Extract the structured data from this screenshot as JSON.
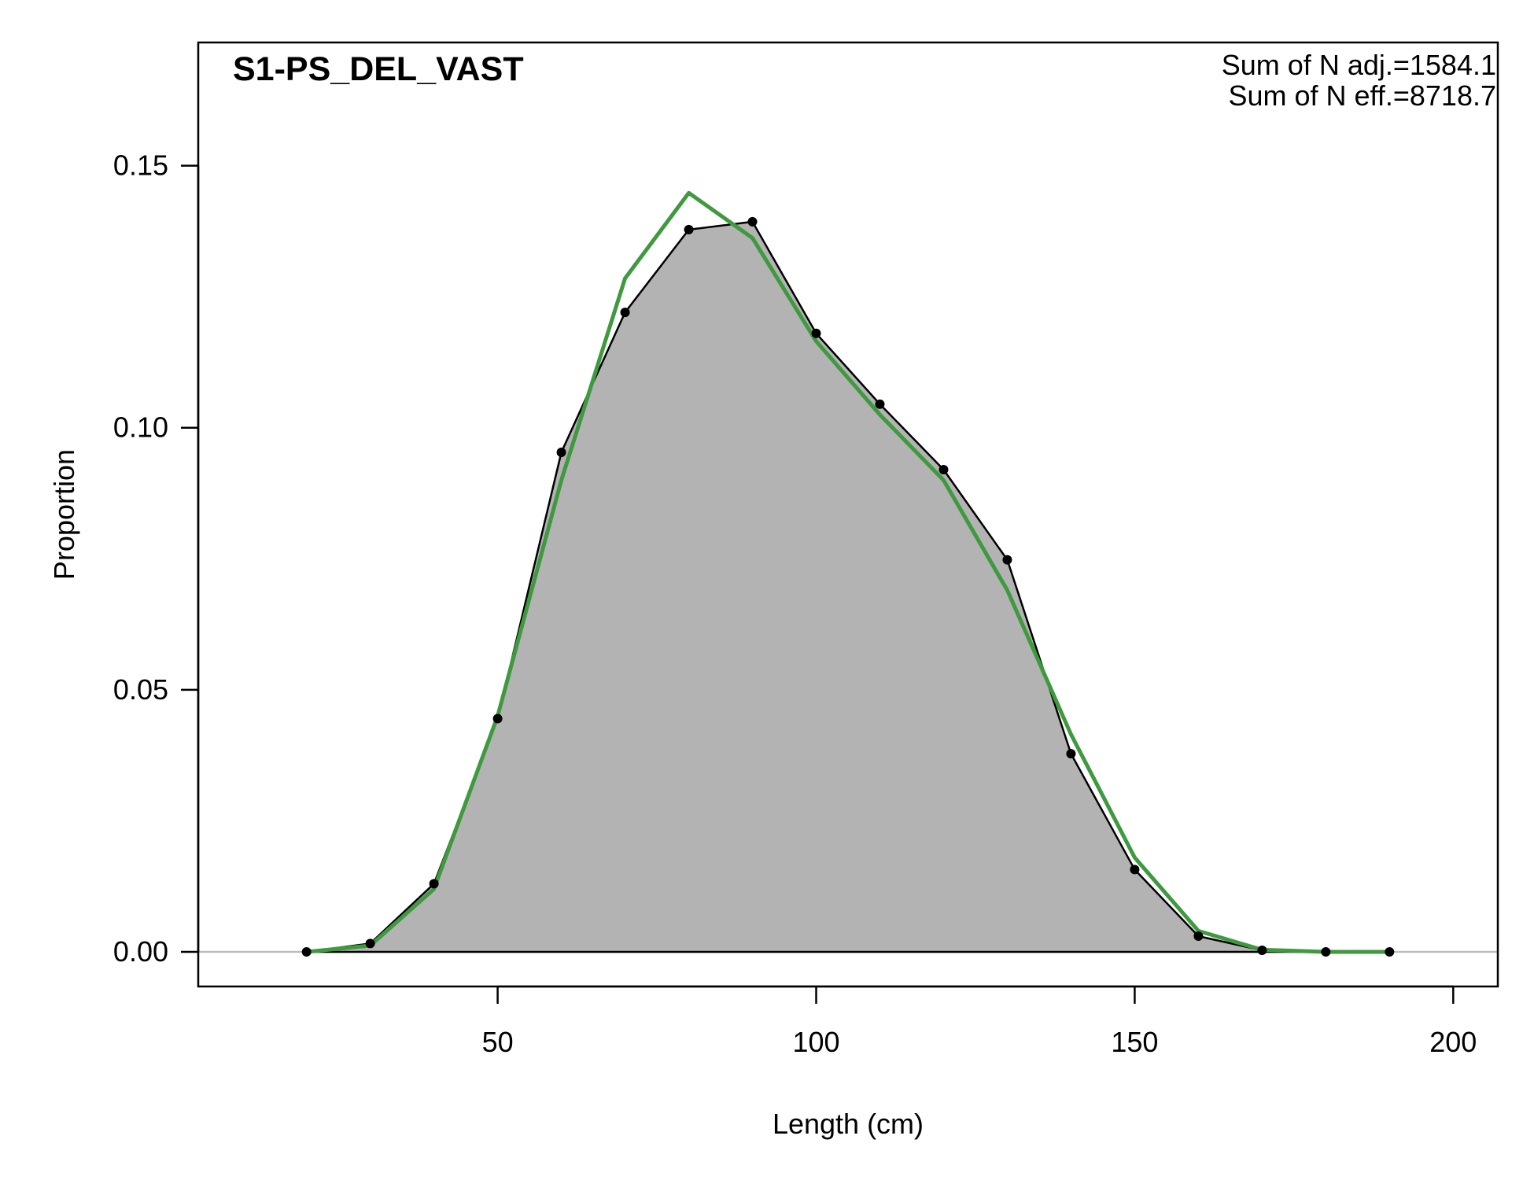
{
  "chart_data": {
    "type": "area",
    "title": "S1-PS_DEL_VAST",
    "xlabel": "Length (cm)",
    "ylabel": "Proportion",
    "xlim": [
      3,
      207
    ],
    "ylim": [
      -0.0066,
      0.1735
    ],
    "xticks": [
      50,
      100,
      150,
      200
    ],
    "yticks": [
      0.0,
      0.05,
      0.1,
      0.15
    ],
    "xtick_labels": [
      "50",
      "100",
      "150",
      "200"
    ],
    "ytick_labels": [
      "0.00",
      "0.05",
      "0.10",
      "0.15"
    ],
    "x": [
      20,
      30,
      40,
      50,
      60,
      70,
      80,
      90,
      100,
      110,
      120,
      130,
      140,
      150,
      160,
      170,
      180,
      190
    ],
    "series": [
      {
        "role": "observed",
        "style": "grey filled area with black line and points",
        "color": "#000000",
        "fill": "#b3b3b3",
        "values": [
          0.0,
          0.0016,
          0.013,
          0.0445,
          0.0953,
          0.122,
          0.1378,
          0.1393,
          0.118,
          0.1045,
          0.092,
          0.0748,
          0.0378,
          0.0157,
          0.003,
          0.0003,
          0.0,
          0.0
        ]
      },
      {
        "role": "expected",
        "style": "line",
        "color": "#3f9a3f",
        "values": [
          0.0,
          0.0012,
          0.012,
          0.045,
          0.09,
          0.1285,
          0.1448,
          0.1362,
          0.1165,
          0.1025,
          0.09,
          0.069,
          0.0415,
          0.018,
          0.004,
          0.0004,
          0.0,
          0.0
        ]
      }
    ],
    "zero_line": true,
    "grid": false,
    "annotations": [
      "Sum of N adj.=1584.1",
      "Sum of N eff.=8718.7"
    ]
  }
}
